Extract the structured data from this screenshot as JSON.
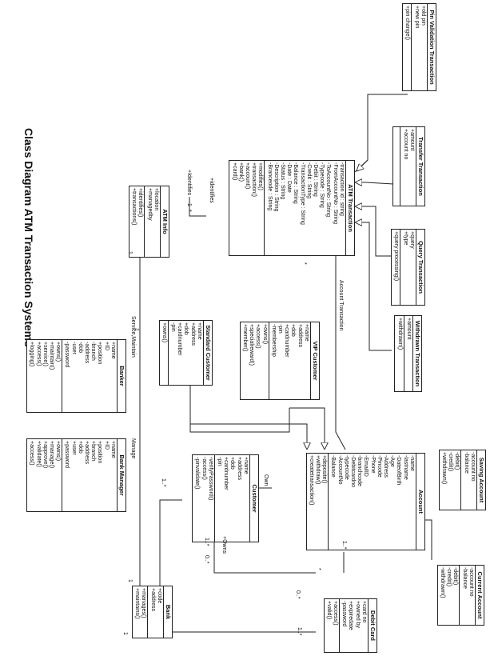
{
  "title": "Class Diagram ATM Transaction Systems",
  "classes": {
    "pin_validation": {
      "name": "Pin Validation Transaction",
      "attrs": [
        "+old pin",
        "+new pin"
      ],
      "ops": [
        "+pin change()"
      ]
    },
    "transfer": {
      "name": "Transfer Transaction",
      "attrs": [
        "+amount",
        "+account no"
      ],
      "ops": []
    },
    "query": {
      "name": "Query Transaction",
      "attrs": [
        "+query",
        "+type"
      ],
      "ops": [
        "+query processing()"
      ]
    },
    "withdrawn": {
      "name": "Withdrawn Transaction",
      "attrs": [
        "+amount"
      ],
      "ops": [
        "+withdrawn()"
      ]
    },
    "atm_transaction": {
      "name": "ATM Transaction",
      "attrs": [
        "-transaction id : string",
        "-FromAccountNo : String",
        "-ToAccountNo : String",
        "-Typecode : String",
        "-Debit : String",
        "-Credit : String",
        "-TransactionType : String",
        "-Balance : String",
        "-Date : Date",
        "-Status : String",
        "-Description : String",
        "-Branceode : String"
      ],
      "ops": [
        "+modifies()",
        "+transaction()",
        "+account()",
        "+bank()",
        "+card()"
      ]
    },
    "atm_info": {
      "name": "ATM Info",
      "attrs": [
        "+location",
        "+managedby"
      ],
      "ops": [
        "+identifies()",
        "+transactions()"
      ]
    },
    "standard_customer": {
      "name": "Standard Customer",
      "attrs": [
        "+name",
        "+address",
        "+dob",
        "+cardnumber",
        "-pin"
      ],
      "ops": [
        "+owns()"
      ]
    },
    "vip_customer": {
      "name": "VIP Customer",
      "attrs": [
        "+name",
        "+address",
        "+dob",
        "+cardnumber",
        "-pin",
        "-membership"
      ],
      "ops": [
        "+owns()",
        "+access()",
        "+specialreward()",
        "+member()"
      ]
    },
    "banker": {
      "name": "Banker",
      "attrs": [
        "+name",
        "+ID",
        "+position",
        "-branch",
        "-address",
        "-dob",
        "-user",
        "-password"
      ],
      "ops": [
        "+owns()",
        "+maintain()",
        "+service()",
        "+access()",
        "+logging()"
      ]
    },
    "bank_manager": {
      "name": "Bank Manager",
      "attrs": [
        "+name",
        "+ID",
        "+position",
        "+branch",
        "+address",
        "+dob",
        "+user",
        "+password"
      ],
      "ops": [
        "+owns()",
        "+manage()",
        "+approve()",
        "+validate()",
        "+access()"
      ]
    },
    "customer": {
      "name": "Customer",
      "attrs": [
        "+name",
        "+address",
        "+dob",
        "+cardnumber",
        "-pin"
      ],
      "ops": [
        "-verifyPassword()",
        "-access()",
        "-pinvalidate()"
      ]
    },
    "account": {
      "name": "Account",
      "attrs": [
        "-name",
        "-lastname",
        "-DateofBirth",
        "-Age",
        "-Address",
        "-Pincode",
        "-Phone",
        "-EmailID",
        "-branchcode",
        "-Debitcardno",
        "-typecode",
        "-AccountNo",
        "-Balance"
      ],
      "ops": [
        "+deposite()",
        "+withdraw()",
        "+createtransaction()"
      ]
    },
    "saving_account": {
      "name": "Saving Account",
      "attrs": [
        "-account no",
        "-balance"
      ],
      "ops": [
        "-debit()",
        "-credit()",
        "+withdrawn()"
      ]
    },
    "current_account": {
      "name": "Current Account",
      "attrs": [
        "-account no",
        "-balance"
      ],
      "ops": [
        "-debit()",
        "-credit()",
        "-withdrawn()"
      ]
    },
    "bank": {
      "name": "Bank",
      "attrs": [
        "+code",
        "+address"
      ],
      "ops": [
        "+manages()",
        "+maintains()"
      ]
    },
    "debit_card": {
      "name": "Debit Card",
      "attrs": [
        "+card no",
        "+owned by",
        "+expiredate",
        "-password"
      ],
      "ops": [
        "+access()",
        "+valid()"
      ]
    }
  },
  "labels": {
    "identifies_assoc": "+Identifies",
    "identifies_role": "+identifies",
    "service_maintain": "Service,Maintain",
    "manage": "Manage",
    "account_transaction": "Account Transaction",
    "own": "Own",
    "owns": "+Owns",
    "m_1a": "1",
    "m_1b": "1",
    "m_1c": "1",
    "m_1d": "1",
    "m_star_a": "*",
    "m_star_b": "*",
    "m_star_c": "*",
    "m_1n_a": "1..*",
    "m_1n_b": "1..*",
    "m_1n_c": "1..*",
    "m_1n_d": "1..*",
    "m_0n": "0..*",
    "m_0n_b": "0..*",
    "m_1e": "1"
  }
}
